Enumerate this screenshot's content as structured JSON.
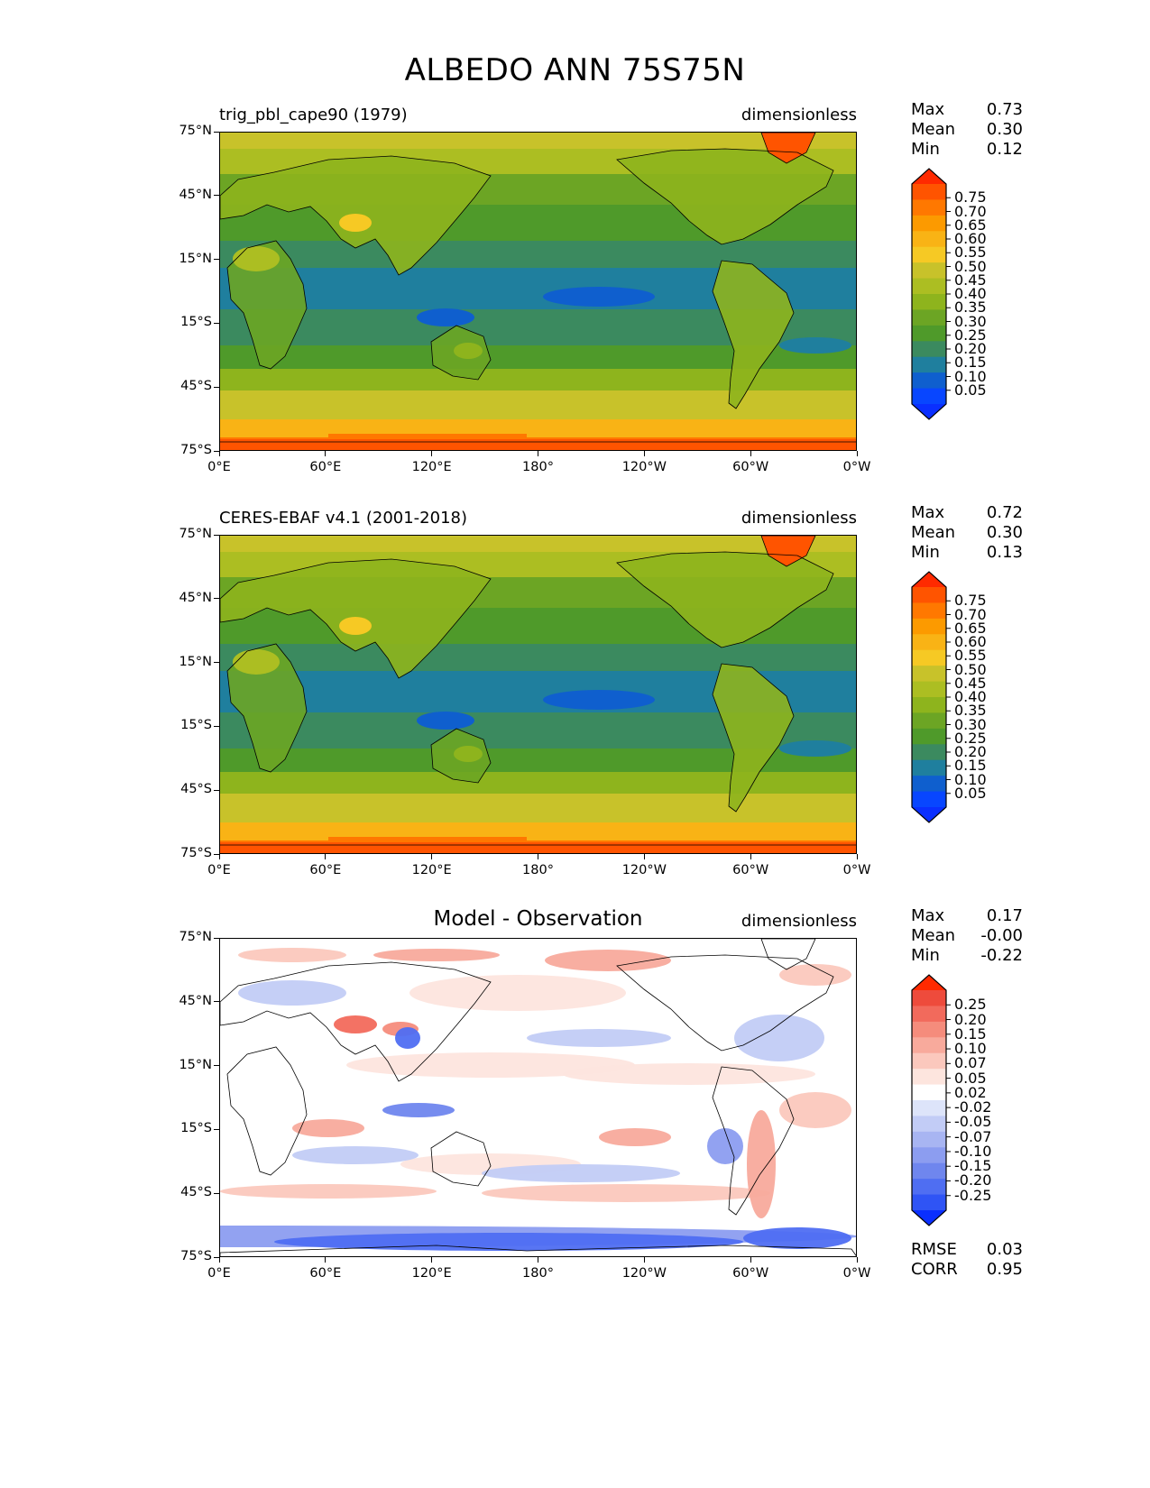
{
  "title": "ALBEDO ANN 75S75N",
  "x_ticks": [
    "0°E",
    "60°E",
    "120°E",
    "180°",
    "120°W",
    "60°W",
    "0°W"
  ],
  "y_ticks": [
    "75°N",
    "45°N",
    "15°N",
    "15°S",
    "45°S",
    "75°S"
  ],
  "stat_labels": {
    "max": "Max",
    "mean": "Mean",
    "min": "Min",
    "rmse": "RMSE",
    "corr": "CORR"
  },
  "panels": [
    {
      "subtitle": "trig_pbl_cape90 (1979)",
      "units": "dimensionless",
      "stats": {
        "max": "0.73",
        "mean": "0.30",
        "min": "0.12"
      }
    },
    {
      "subtitle": "CERES-EBAF v4.1 (2001-2018)",
      "units": "dimensionless",
      "stats": {
        "max": "0.72",
        "mean": "0.30",
        "min": "0.13"
      }
    },
    {
      "subtitle": "Model - Observation",
      "units": "dimensionless",
      "stats": {
        "max": "0.17",
        "mean": "-0.00",
        "min": "-0.22"
      },
      "rmse": "0.03",
      "corr": "0.95"
    }
  ],
  "colorbar_field": {
    "levels": [
      "0.75",
      "0.70",
      "0.65",
      "0.60",
      "0.55",
      "0.50",
      "0.45",
      "0.40",
      "0.35",
      "0.30",
      "0.25",
      "0.20",
      "0.15",
      "0.10",
      "0.05"
    ],
    "colors": [
      "#ff2a00",
      "#ff5400",
      "#ff7800",
      "#fc9a00",
      "#f9b315",
      "#f6c924",
      "#c8c22a",
      "#acbe22",
      "#8eb41d",
      "#6ca524",
      "#4f9a2a",
      "#3b8a5f",
      "#1f7f9e",
      "#0f5fce",
      "#0846ff",
      "#0a2fff"
    ]
  },
  "colorbar_diff": {
    "levels": [
      "0.25",
      "0.20",
      "0.15",
      "0.10",
      "0.07",
      "0.05",
      "0.02",
      "-0.02",
      "-0.05",
      "-0.07",
      "-0.10",
      "-0.15",
      "-0.20",
      "-0.25"
    ],
    "colors": [
      "#ff2a00",
      "#ee4b3c",
      "#f26a5c",
      "#f58c7c",
      "#f8aa9c",
      "#fbc8bd",
      "#fde5de",
      "#ffffff",
      "#dde4fa",
      "#c2ccf6",
      "#a8b5f2",
      "#8c9df0",
      "#6f86ee",
      "#4f6ef2",
      "#2f54f5",
      "#0a2fff"
    ]
  }
}
